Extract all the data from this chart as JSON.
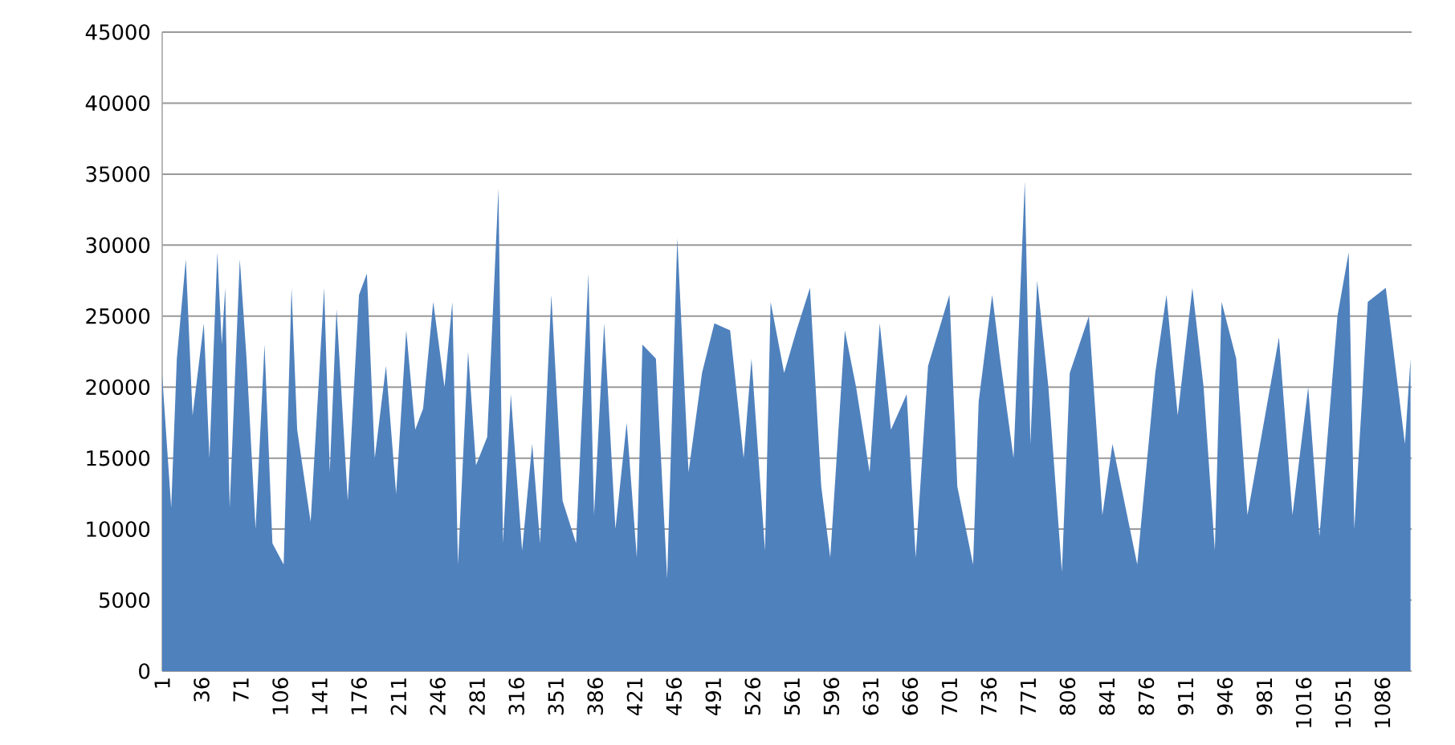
{
  "chart_data": {
    "type": "area",
    "color": "#4f81bd",
    "grid": "y",
    "x": [
      1,
      9,
      14,
      22,
      28,
      38,
      43,
      50,
      54,
      57,
      61,
      70,
      76,
      84,
      92,
      99,
      109,
      116,
      121,
      133,
      145,
      150,
      156,
      166,
      176,
      183,
      190,
      200,
      209,
      218,
      226,
      233,
      242,
      252,
      259,
      264,
      273,
      280,
      290,
      300,
      304,
      311,
      321,
      330,
      337,
      347,
      357,
      369,
      380,
      385,
      394,
      404,
      414,
      423,
      428,
      440,
      450,
      459,
      469,
      481,
      492,
      506,
      518,
      525,
      537,
      542,
      554,
      565,
      577,
      587,
      595,
      608,
      618,
      630,
      639,
      649,
      663,
      671,
      682,
      701,
      708,
      722,
      727,
      739,
      746,
      758,
      768,
      773,
      779,
      789,
      801,
      808,
      825,
      837,
      846,
      868,
      884,
      894,
      904,
      917,
      927,
      937,
      943,
      956,
      966,
      994,
      1006,
      1020,
      1030,
      1046,
      1056,
      1061,
      1073,
      1089,
      1106,
      1111
    ],
    "values": [
      20800,
      11500,
      22000,
      29000,
      18000,
      24500,
      15000,
      29500,
      23000,
      27000,
      11500,
      29000,
      22000,
      10000,
      23000,
      9000,
      7500,
      27000,
      17000,
      10500,
      27000,
      14000,
      25500,
      12000,
      26500,
      28000,
      15000,
      21500,
      12500,
      24000,
      17000,
      18500,
      26000,
      20000,
      26000,
      7500,
      22500,
      14500,
      16500,
      34000,
      9000,
      19500,
      8500,
      16000,
      9000,
      26500,
      12000,
      9000,
      28000,
      11000,
      24500,
      10000,
      17500,
      8000,
      23000,
      22000,
      6500,
      30500,
      14000,
      21000,
      24500,
      24000,
      15000,
      22000,
      8500,
      26000,
      21000,
      24000,
      27000,
      13000,
      8000,
      24000,
      20000,
      14000,
      24500,
      17000,
      19500,
      8000,
      21500,
      26500,
      13000,
      7500,
      19000,
      26500,
      22000,
      15000,
      34500,
      16000,
      27500,
      20000,
      7000,
      21000,
      25000,
      11000,
      16000,
      7500,
      21000,
      26500,
      18000,
      27000,
      20000,
      8500,
      26000,
      22000,
      11000,
      23500,
      11000,
      20000,
      9500,
      25000,
      29500,
      10000,
      26000,
      27000,
      16000,
      22000
    ],
    "xlim": [
      1,
      1112
    ],
    "xticks": [
      1,
      36,
      71,
      106,
      141,
      176,
      211,
      246,
      281,
      316,
      351,
      386,
      421,
      456,
      491,
      526,
      561,
      596,
      631,
      666,
      701,
      736,
      771,
      806,
      841,
      876,
      911,
      946,
      981,
      1016,
      1051,
      1086
    ],
    "ylim": [
      0,
      45000
    ],
    "yticks": [
      0,
      5000,
      10000,
      15000,
      20000,
      25000,
      30000,
      35000,
      40000,
      45000
    ]
  }
}
